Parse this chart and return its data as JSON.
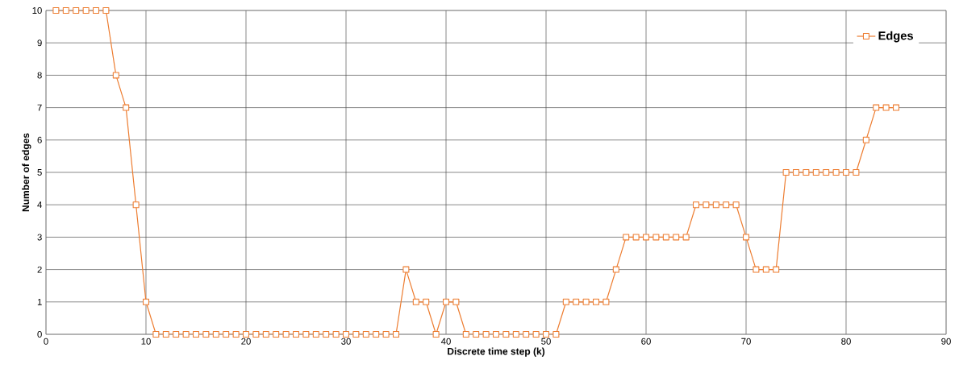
{
  "chart_data": {
    "type": "line",
    "xlabel": "Discrete time step (k)",
    "ylabel": "Number of edges",
    "x": [
      1,
      2,
      3,
      4,
      5,
      6,
      7,
      8,
      9,
      10,
      11,
      12,
      13,
      14,
      15,
      16,
      17,
      18,
      19,
      20,
      21,
      22,
      23,
      24,
      25,
      26,
      27,
      28,
      29,
      30,
      31,
      32,
      33,
      34,
      35,
      36,
      37,
      38,
      39,
      40,
      41,
      42,
      43,
      44,
      45,
      46,
      47,
      48,
      49,
      50,
      51,
      52,
      53,
      54,
      55,
      56,
      57,
      58,
      59,
      60,
      61,
      62,
      63,
      64,
      65,
      66,
      67,
      68,
      69,
      70,
      71,
      72,
      73,
      74,
      75,
      76,
      77,
      78,
      79,
      80,
      81,
      82,
      83,
      84,
      85
    ],
    "series": [
      {
        "name": "Edges",
        "color": "#ed7d31",
        "values": [
          10,
          10,
          10,
          10,
          10,
          10,
          8,
          7,
          4,
          1,
          0,
          0,
          0,
          0,
          0,
          0,
          0,
          0,
          0,
          0,
          0,
          0,
          0,
          0,
          0,
          0,
          0,
          0,
          0,
          0,
          0,
          0,
          0,
          0,
          0,
          2,
          1,
          1,
          0,
          1,
          1,
          0,
          0,
          0,
          0,
          0,
          0,
          0,
          0,
          0,
          0,
          1,
          1,
          1,
          1,
          1,
          2,
          3,
          3,
          3,
          3,
          3,
          3,
          3,
          4,
          4,
          4,
          4,
          4,
          3,
          2,
          2,
          2,
          5,
          5,
          5,
          5,
          5,
          5,
          5,
          5,
          6,
          7,
          7,
          7
        ]
      }
    ],
    "xlim": [
      0,
      90
    ],
    "xticks": [
      0,
      10,
      20,
      30,
      40,
      50,
      60,
      70,
      80,
      90
    ],
    "ylim": [
      0,
      10
    ],
    "yticks": [
      0,
      1,
      2,
      3,
      4,
      5,
      6,
      7,
      8,
      9,
      10
    ],
    "grid": true,
    "legend": "top right",
    "marker": "square",
    "line_style": "solid"
  }
}
